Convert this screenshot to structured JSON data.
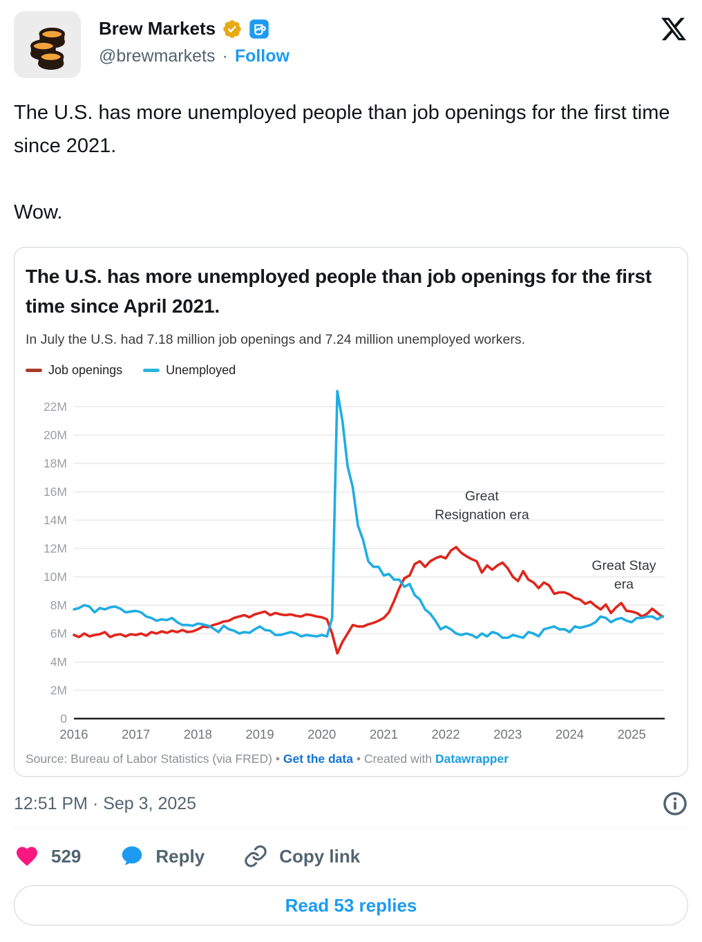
{
  "header": {
    "display_name": "Brew Markets",
    "handle": "@brewmarkets",
    "separator": "·",
    "follow_label": "Follow"
  },
  "tweet": {
    "text": "The U.S. has more unemployed people than job openings for the first time since 2021.\n\nWow."
  },
  "chart_card": {
    "title": "The U.S. has more unemployed people than job openings for the first time since April 2021.",
    "subtitle": "In July the U.S. had 7.18 million job openings and 7.24 million unemployed workers.",
    "legend": [
      {
        "label": "Job openings",
        "color": "#a83c2b"
      },
      {
        "label": "Unemployed",
        "color": "#2ab6dc"
      }
    ],
    "footer": {
      "source_text": "Source: Bureau of Labor Statistics (via FRED)",
      "dot1": "•",
      "get_data_label": "Get the data",
      "dot2": "•",
      "created_with": "Created with",
      "datawrapper_label": "Datawrapper"
    }
  },
  "chart_data": {
    "type": "line",
    "title": "The U.S. has more unemployed people than job openings for the first time since April 2021.",
    "subtitle": "In July the U.S. had 7.18 million job openings and 7.24 million unemployed workers.",
    "x_start": "2016-01",
    "x_end": "2025-07",
    "ylim": [
      0,
      23.5
    ],
    "grid": "horizontal",
    "legend_position": "top-left",
    "y_ticks": [
      {
        "value": 0,
        "label": "0"
      },
      {
        "value": 2,
        "label": "2M"
      },
      {
        "value": 4,
        "label": "4M"
      },
      {
        "value": 6,
        "label": "6M"
      },
      {
        "value": 8,
        "label": "8M"
      },
      {
        "value": 10,
        "label": "10M"
      },
      {
        "value": 12,
        "label": "12M"
      },
      {
        "value": 14,
        "label": "14M"
      },
      {
        "value": 16,
        "label": "16M"
      },
      {
        "value": 18,
        "label": "18M"
      },
      {
        "value": 20,
        "label": "20M"
      },
      {
        "value": 22,
        "label": "22M"
      }
    ],
    "x_ticks": [
      {
        "month_index": 0,
        "label": "2016"
      },
      {
        "month_index": 12,
        "label": "2017"
      },
      {
        "month_index": 24,
        "label": "2018"
      },
      {
        "month_index": 36,
        "label": "2019"
      },
      {
        "month_index": 48,
        "label": "2020"
      },
      {
        "month_index": 60,
        "label": "2021"
      },
      {
        "month_index": 72,
        "label": "2022"
      },
      {
        "month_index": 84,
        "label": "2023"
      },
      {
        "month_index": 96,
        "label": "2024"
      },
      {
        "month_index": 108,
        "label": "2025"
      }
    ],
    "series": [
      {
        "name": "Job openings",
        "color": "#e0251c",
        "unit": "millions",
        "values": [
          5.9,
          5.75,
          6.0,
          5.8,
          5.9,
          5.95,
          6.1,
          5.75,
          5.9,
          5.95,
          5.8,
          5.95,
          5.9,
          6.0,
          5.85,
          6.1,
          6.0,
          6.15,
          6.05,
          6.2,
          6.1,
          6.25,
          6.1,
          6.15,
          6.3,
          6.5,
          6.45,
          6.6,
          6.7,
          6.85,
          6.9,
          7.1,
          7.2,
          7.3,
          7.15,
          7.35,
          7.45,
          7.55,
          7.3,
          7.45,
          7.35,
          7.3,
          7.35,
          7.25,
          7.2,
          7.35,
          7.3,
          7.2,
          7.15,
          7.0,
          6.0,
          4.6,
          5.4,
          6.0,
          6.6,
          6.5,
          6.5,
          6.65,
          6.75,
          6.9,
          7.1,
          7.5,
          8.3,
          9.2,
          9.9,
          10.1,
          10.9,
          11.1,
          10.7,
          11.1,
          11.3,
          11.45,
          11.3,
          11.85,
          12.1,
          11.7,
          11.45,
          11.25,
          11.1,
          10.3,
          10.8,
          10.5,
          10.8,
          11.0,
          10.6,
          10.0,
          9.7,
          10.4,
          9.8,
          9.6,
          9.2,
          9.6,
          9.4,
          8.8,
          8.9,
          8.9,
          8.75,
          8.5,
          8.4,
          8.1,
          8.25,
          7.95,
          7.7,
          8.05,
          7.45,
          7.85,
          8.15,
          7.6,
          7.55,
          7.45,
          7.2,
          7.4,
          7.75,
          7.45,
          7.18
        ]
      },
      {
        "name": "Unemployed",
        "color": "#1fade4",
        "unit": "millions",
        "values": [
          7.7,
          7.8,
          8.0,
          7.9,
          7.5,
          7.8,
          7.7,
          7.85,
          7.9,
          7.75,
          7.5,
          7.55,
          7.6,
          7.5,
          7.2,
          7.1,
          6.9,
          7.0,
          6.95,
          7.1,
          6.8,
          6.6,
          6.6,
          6.55,
          6.7,
          6.65,
          6.55,
          6.35,
          6.1,
          6.55,
          6.3,
          6.2,
          6.0,
          6.1,
          6.05,
          6.3,
          6.5,
          6.25,
          6.2,
          5.9,
          5.9,
          6.0,
          6.1,
          6.0,
          5.8,
          5.9,
          5.85,
          5.8,
          5.9,
          5.8,
          7.1,
          23.1,
          21.0,
          17.8,
          16.3,
          13.6,
          12.6,
          11.1,
          10.7,
          10.7,
          10.1,
          10.2,
          9.8,
          9.8,
          9.3,
          9.5,
          8.7,
          8.4,
          7.7,
          7.4,
          6.9,
          6.3,
          6.5,
          6.3,
          6.0,
          5.9,
          6.0,
          5.9,
          5.7,
          6.0,
          5.8,
          6.1,
          6.0,
          5.7,
          5.7,
          5.9,
          5.8,
          5.7,
          6.1,
          6.0,
          5.8,
          6.3,
          6.4,
          6.5,
          6.3,
          6.3,
          6.1,
          6.5,
          6.4,
          6.5,
          6.6,
          6.8,
          7.2,
          7.1,
          6.8,
          7.0,
          7.1,
          6.9,
          6.8,
          7.1,
          7.1,
          7.2,
          7.2,
          7.0,
          7.24
        ]
      }
    ],
    "annotations": [
      {
        "lines": [
          "Great",
          "Resignation era"
        ],
        "month_index": 79,
        "value": 15.4
      },
      {
        "lines": [
          "Great Stay",
          "era"
        ],
        "month_index": 106.5,
        "value": 10.5
      }
    ]
  },
  "footer": {
    "timestamp": "12:51 PM · Sep 3, 2025",
    "like_count": "529",
    "reply_label": "Reply",
    "copy_link_label": "Copy link",
    "read_replies_label": "Read 53 replies"
  }
}
